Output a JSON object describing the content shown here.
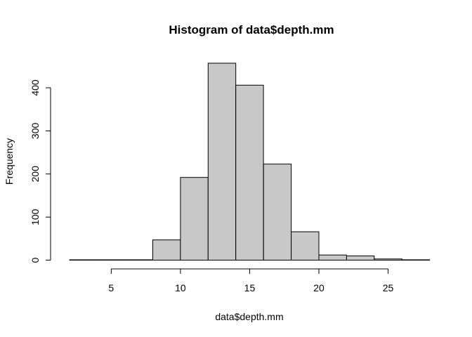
{
  "chart_data": {
    "type": "bar",
    "title": "Histogram of data$depth.mm",
    "xlabel": "data$depth.mm",
    "ylabel": "Frequency",
    "bins": [
      {
        "start": 2,
        "end": 4,
        "count": 1
      },
      {
        "start": 4,
        "end": 6,
        "count": 1
      },
      {
        "start": 6,
        "end": 8,
        "count": 1
      },
      {
        "start": 8,
        "end": 10,
        "count": 47
      },
      {
        "start": 10,
        "end": 12,
        "count": 192
      },
      {
        "start": 12,
        "end": 14,
        "count": 457
      },
      {
        "start": 14,
        "end": 16,
        "count": 406
      },
      {
        "start": 16,
        "end": 18,
        "count": 223
      },
      {
        "start": 18,
        "end": 20,
        "count": 66
      },
      {
        "start": 20,
        "end": 22,
        "count": 12
      },
      {
        "start": 22,
        "end": 24,
        "count": 10
      },
      {
        "start": 24,
        "end": 26,
        "count": 3
      },
      {
        "start": 26,
        "end": 28,
        "count": 1
      }
    ],
    "xlim": [
      2,
      28
    ],
    "ylim": [
      0,
      457
    ],
    "xticks": [
      5,
      10,
      15,
      20,
      25
    ],
    "yticks": [
      0,
      100,
      200,
      300,
      400
    ],
    "bar_color": "#c8c8c8",
    "grid": false
  }
}
